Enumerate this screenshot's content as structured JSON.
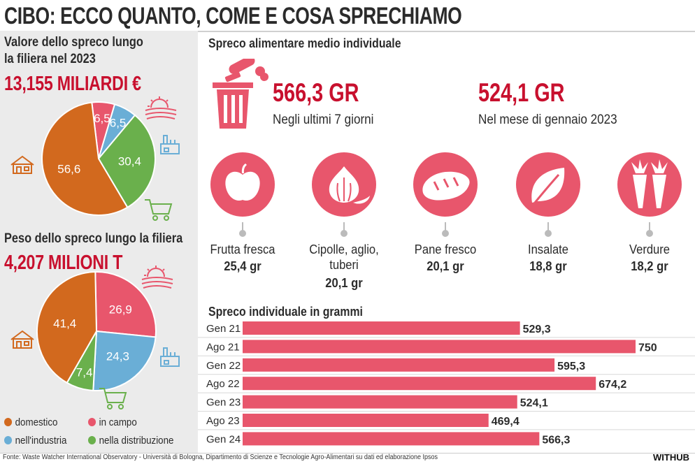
{
  "title": "CIBO: ECCO QUANTO, COME E COSA SPRECHIAMO",
  "colors": {
    "red": "#c8102e",
    "domestico": "#d2691e",
    "in_campo": "#e8566c",
    "industria": "#6aaed6",
    "distribuzione": "#6ab04c",
    "bar": "#e8566c"
  },
  "value_panel": {
    "title_line1": "Valore dello spreco lungo",
    "title_line2": "la filiera nel 2023",
    "total": "13,155 MILIARDI €"
  },
  "weight_panel": {
    "title": "Peso dello spreco lungo la filiera",
    "total": "4,207 MILIONI T"
  },
  "legend": [
    {
      "key": "domestico",
      "label": "domestico"
    },
    {
      "key": "in_campo",
      "label": "in campo"
    },
    {
      "key": "industria",
      "label": "nell'industria"
    },
    {
      "key": "distribuzione",
      "label": "nella distribuzione"
    }
  ],
  "avg_section": {
    "title": "Spreco alimentare medio individuale",
    "stat1_value": "566,3 GR",
    "stat1_label": "Negli ultimi 7 giorni",
    "stat2_value": "524,1 GR",
    "stat2_label": "Nel mese di gennaio 2023"
  },
  "categories": [
    {
      "icon": "apple-icon",
      "name": "Frutta fresca",
      "value": "25,4 gr"
    },
    {
      "icon": "garlic-icon",
      "name": "Cipolle, aglio, tuberi",
      "value": "20,1 gr"
    },
    {
      "icon": "bread-icon",
      "name": "Pane fresco",
      "value": "20,1 gr"
    },
    {
      "icon": "leaf-icon",
      "name": "Insalate",
      "value": "18,8 gr"
    },
    {
      "icon": "carrot-icon",
      "name": "Verdure",
      "value": "18,2 gr"
    }
  ],
  "bar_section": {
    "title": "Spreco individuale in grammi"
  },
  "footer": {
    "source": "Fonte: Waste Watcher International Observatory - Università di Bologna, Dipartimento di Scienze e Tecnologie Agro-Alimentari su dati ed elaborazione Ipsos",
    "brand": "WITHUB"
  },
  "chart_data": [
    {
      "type": "pie",
      "title": "Valore dello spreco lungo la filiera nel 2023",
      "total_label": "13,155 MILIARDI €",
      "categories": [
        "domestico",
        "in campo",
        "nell'industria",
        "nella distribuzione"
      ],
      "values": [
        56.6,
        6.5,
        6.5,
        30.4
      ],
      "labels": [
        "56,6",
        "6,5",
        "6,5",
        "30,4"
      ]
    },
    {
      "type": "pie",
      "title": "Peso dello spreco lungo la filiera",
      "total_label": "4,207 MILIONI T",
      "categories": [
        "domestico",
        "in campo",
        "nell'industria",
        "nella distribuzione"
      ],
      "values": [
        41.4,
        26.9,
        24.3,
        7.4
      ],
      "labels": [
        "41,4",
        "26,9",
        "24,3",
        "7,4"
      ]
    },
    {
      "type": "bar",
      "orientation": "horizontal",
      "title": "Spreco individuale in grammi",
      "categories": [
        "Gen 21",
        "Ago 21",
        "Gen 22",
        "Ago 22",
        "Gen 23",
        "Ago 23",
        "Gen 24"
      ],
      "values": [
        529.3,
        750,
        595.3,
        674.2,
        524.1,
        469.4,
        566.3
      ],
      "labels": [
        "529,3",
        "750",
        "595,3",
        "674,2",
        "524,1",
        "469,4",
        "566,3"
      ],
      "xlim": [
        0,
        750
      ]
    }
  ]
}
